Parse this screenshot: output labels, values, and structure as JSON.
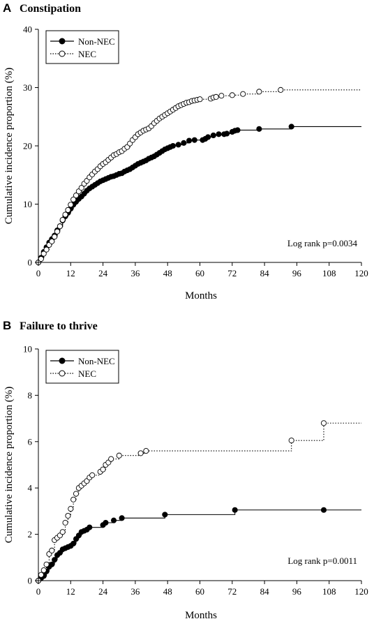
{
  "chart_data": [
    {
      "type": "line",
      "panel": "A",
      "title": "Constipation",
      "xlabel": "Months",
      "ylabel": "Cumulative incidence proportion (%)",
      "xlim": [
        0,
        120
      ],
      "ylim": [
        0,
        40
      ],
      "xticks": [
        "0",
        "12",
        "24",
        "36",
        "48",
        "60",
        "72",
        "84",
        "96",
        "108",
        "120"
      ],
      "yticks": [
        "0",
        "10",
        "20",
        "30",
        "40"
      ],
      "legend_position": "top-left",
      "annotation": "Log rank p=0.0034",
      "series": [
        {
          "name": "Non-NEC",
          "style": "solid",
          "marker": "filled-circle",
          "color": "#000000",
          "end_x": 120,
          "points": [
            [
              0,
              0
            ],
            [
              1,
              0.8
            ],
            [
              2,
              1.8
            ],
            [
              3,
              2.6
            ],
            [
              4,
              3.4
            ],
            [
              5,
              4.0
            ],
            [
              6,
              4.6
            ],
            [
              7,
              5.5
            ],
            [
              8,
              6.2
            ],
            [
              9,
              7.2
            ],
            [
              10,
              7.9
            ],
            [
              11,
              8.5
            ],
            [
              12,
              9.2
            ],
            [
              13,
              9.9
            ],
            [
              14,
              10.4
            ],
            [
              15,
              10.9
            ],
            [
              16,
              11.3
            ],
            [
              17,
              11.8
            ],
            [
              18,
              12.3
            ],
            [
              19,
              12.7
            ],
            [
              20,
              13.0
            ],
            [
              21,
              13.3
            ],
            [
              22,
              13.6
            ],
            [
              23,
              13.9
            ],
            [
              24,
              14.1
            ],
            [
              25,
              14.3
            ],
            [
              26,
              14.5
            ],
            [
              27,
              14.7
            ],
            [
              28,
              14.8
            ],
            [
              29,
              15.0
            ],
            [
              30,
              15.2
            ],
            [
              31,
              15.3
            ],
            [
              32,
              15.6
            ],
            [
              33,
              15.8
            ],
            [
              34,
              16.0
            ],
            [
              35,
              16.3
            ],
            [
              36,
              16.6
            ],
            [
              37,
              16.9
            ],
            [
              38,
              17.1
            ],
            [
              39,
              17.3
            ],
            [
              40,
              17.5
            ],
            [
              41,
              17.8
            ],
            [
              42,
              18.0
            ],
            [
              43,
              18.2
            ],
            [
              44,
              18.5
            ],
            [
              45,
              18.8
            ],
            [
              46,
              19.1
            ],
            [
              47,
              19.4
            ],
            [
              48,
              19.6
            ],
            [
              49,
              19.8
            ],
            [
              50,
              20.0
            ],
            [
              52,
              20.2
            ],
            [
              54,
              20.5
            ],
            [
              56,
              20.9
            ],
            [
              58,
              21.0
            ],
            [
              61,
              21.0
            ],
            [
              62,
              21.2
            ],
            [
              63,
              21.5
            ],
            [
              65,
              21.8
            ],
            [
              67,
              22.0
            ],
            [
              69,
              22.0
            ],
            [
              70,
              22.1
            ],
            [
              72,
              22.4
            ],
            [
              73,
              22.6
            ],
            [
              74,
              22.7
            ],
            [
              82,
              22.9
            ],
            [
              94,
              23.3
            ]
          ]
        },
        {
          "name": "NEC",
          "style": "dotted",
          "marker": "open-circle",
          "color": "#000000",
          "end_x": 120,
          "points": [
            [
              0,
              0
            ],
            [
              1,
              0.6
            ],
            [
              2,
              1.5
            ],
            [
              3,
              2.2
            ],
            [
              4,
              3.0
            ],
            [
              5,
              3.6
            ],
            [
              6,
              4.4
            ],
            [
              7,
              5.3
            ],
            [
              8,
              6.2
            ],
            [
              9,
              7.3
            ],
            [
              10,
              8.2
            ],
            [
              11,
              9.0
            ],
            [
              12,
              9.9
            ],
            [
              13,
              10.8
            ],
            [
              14,
              11.5
            ],
            [
              15,
              12.2
            ],
            [
              16,
              12.8
            ],
            [
              17,
              13.5
            ],
            [
              18,
              14.0
            ],
            [
              19,
              14.6
            ],
            [
              20,
              15.1
            ],
            [
              21,
              15.6
            ],
            [
              22,
              16.0
            ],
            [
              23,
              16.5
            ],
            [
              24,
              16.9
            ],
            [
              25,
              17.2
            ],
            [
              26,
              17.6
            ],
            [
              27,
              18.0
            ],
            [
              28,
              18.4
            ],
            [
              29,
              18.6
            ],
            [
              30,
              18.9
            ],
            [
              31,
              19.1
            ],
            [
              32,
              19.5
            ],
            [
              33,
              19.8
            ],
            [
              34,
              20.4
            ],
            [
              35,
              21.0
            ],
            [
              36,
              21.5
            ],
            [
              37,
              22.0
            ],
            [
              38,
              22.3
            ],
            [
              39,
              22.6
            ],
            [
              40,
              22.8
            ],
            [
              41,
              23.0
            ],
            [
              42,
              23.4
            ],
            [
              43,
              23.9
            ],
            [
              44,
              24.3
            ],
            [
              45,
              24.7
            ],
            [
              46,
              25.0
            ],
            [
              47,
              25.3
            ],
            [
              48,
              25.6
            ],
            [
              49,
              25.9
            ],
            [
              50,
              26.2
            ],
            [
              51,
              26.5
            ],
            [
              52,
              26.8
            ],
            [
              53,
              27.0
            ],
            [
              54,
              27.2
            ],
            [
              55,
              27.4
            ],
            [
              56,
              27.5
            ],
            [
              57,
              27.7
            ],
            [
              58,
              27.8
            ],
            [
              59,
              27.9
            ],
            [
              60,
              28.0
            ],
            [
              64,
              28.1
            ],
            [
              65,
              28.3
            ],
            [
              66,
              28.4
            ],
            [
              68,
              28.6
            ],
            [
              72,
              28.7
            ],
            [
              76,
              28.9
            ],
            [
              82,
              29.3
            ],
            [
              90,
              29.6
            ]
          ]
        }
      ]
    },
    {
      "type": "line",
      "panel": "B",
      "title": "Failure to thrive",
      "xlabel": "Months",
      "ylabel": "Cumulative incidence proportion (%)",
      "xlim": [
        0,
        120
      ],
      "ylim": [
        0,
        10
      ],
      "xticks": [
        "0",
        "12",
        "24",
        "36",
        "48",
        "60",
        "72",
        "84",
        "96",
        "108",
        "120"
      ],
      "yticks": [
        "0",
        "2",
        "4",
        "6",
        "8",
        "10"
      ],
      "legend_position": "top-left",
      "annotation": "Log rank p=0.0011",
      "series": [
        {
          "name": "Non-NEC",
          "style": "solid",
          "marker": "filled-circle",
          "color": "#000000",
          "end_x": 120,
          "points": [
            [
              0,
              0
            ],
            [
              1,
              0.1
            ],
            [
              2,
              0.2
            ],
            [
              3,
              0.4
            ],
            [
              4,
              0.6
            ],
            [
              5,
              0.7
            ],
            [
              6,
              0.9
            ],
            [
              7,
              1.1
            ],
            [
              8,
              1.2
            ],
            [
              9,
              1.35
            ],
            [
              10,
              1.4
            ],
            [
              11,
              1.45
            ],
            [
              12,
              1.5
            ],
            [
              13,
              1.6
            ],
            [
              14,
              1.8
            ],
            [
              15,
              1.95
            ],
            [
              16,
              2.1
            ],
            [
              17,
              2.15
            ],
            [
              18,
              2.2
            ],
            [
              19,
              2.3
            ],
            [
              24,
              2.4
            ],
            [
              25,
              2.5
            ],
            [
              28,
              2.6
            ],
            [
              31,
              2.7
            ],
            [
              47,
              2.85
            ],
            [
              73,
              3.05
            ],
            [
              106,
              3.05
            ]
          ]
        },
        {
          "name": "NEC",
          "style": "dotted",
          "marker": "open-circle",
          "color": "#000000",
          "end_x": 120,
          "points": [
            [
              0,
              0
            ],
            [
              1,
              0.25
            ],
            [
              2,
              0.45
            ],
            [
              3,
              0.7
            ],
            [
              4,
              1.15
            ],
            [
              5,
              1.3
            ],
            [
              6,
              1.75
            ],
            [
              7,
              1.85
            ],
            [
              8,
              1.95
            ],
            [
              9,
              2.1
            ],
            [
              10,
              2.5
            ],
            [
              11,
              2.8
            ],
            [
              12,
              3.1
            ],
            [
              13,
              3.5
            ],
            [
              14,
              3.75
            ],
            [
              15,
              4.0
            ],
            [
              16,
              4.1
            ],
            [
              17,
              4.2
            ],
            [
              18,
              4.3
            ],
            [
              19,
              4.45
            ],
            [
              20,
              4.55
            ],
            [
              23,
              4.7
            ],
            [
              24,
              4.8
            ],
            [
              25,
              5.0
            ],
            [
              26,
              5.1
            ],
            [
              27,
              5.25
            ],
            [
              30,
              5.4
            ],
            [
              38,
              5.5
            ],
            [
              40,
              5.6
            ],
            [
              94,
              6.05
            ],
            [
              106,
              6.8
            ]
          ]
        }
      ]
    }
  ]
}
